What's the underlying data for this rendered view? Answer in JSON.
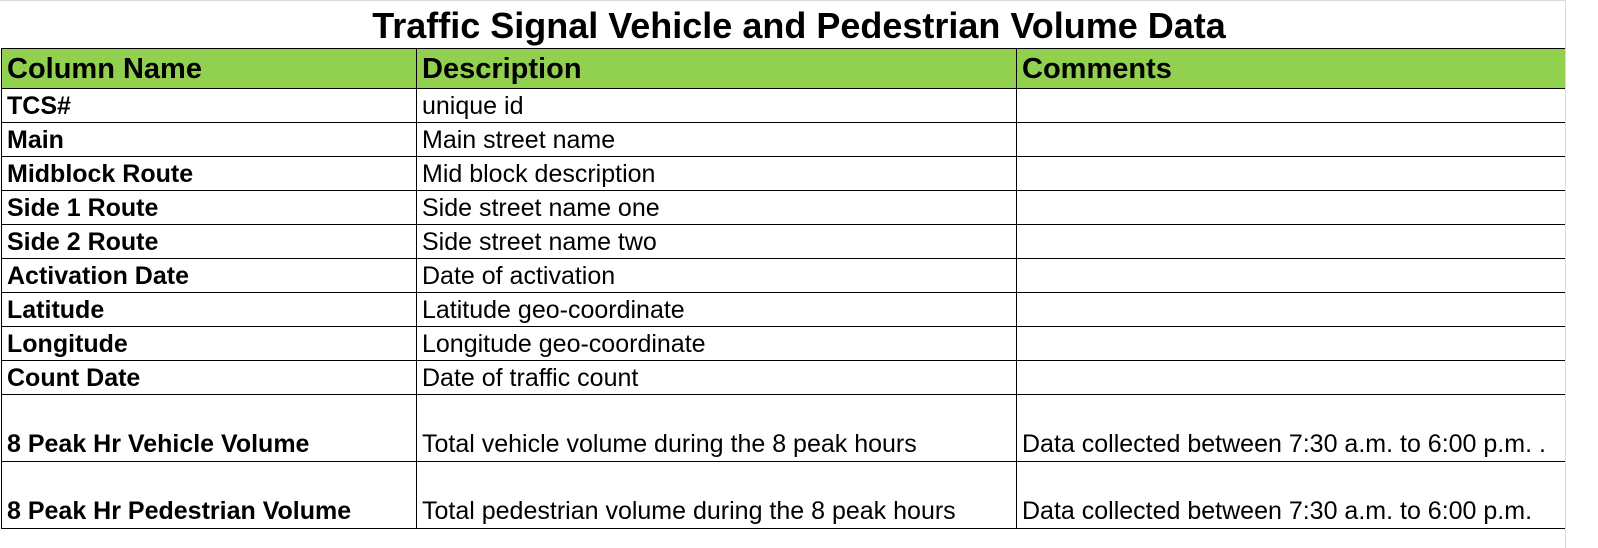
{
  "title": "Traffic Signal Vehicle and Pedestrian Volume Data",
  "headers": {
    "column_name": "Column Name",
    "description": "Description",
    "comments": "Comments"
  },
  "rows": [
    {
      "name": "TCS#",
      "description": "unique id",
      "comments": ""
    },
    {
      "name": "Main",
      "description": "Main street name",
      "comments": ""
    },
    {
      "name": "Midblock Route",
      "description": "Mid block description",
      "comments": ""
    },
    {
      "name": "Side 1 Route",
      "description": "Side street name one",
      "comments": ""
    },
    {
      "name": "Side 2 Route",
      "description": "Side street name two",
      "comments": ""
    },
    {
      "name": "Activation Date",
      "description": "Date of activation",
      "comments": ""
    },
    {
      "name": "Latitude",
      "description": "Latitude geo-coordinate",
      "comments": ""
    },
    {
      "name": "Longitude",
      "description": "Longitude geo-coordinate",
      "comments": ""
    },
    {
      "name": "Count Date",
      "description": "Date of traffic count",
      "comments": ""
    },
    {
      "name": "8 Peak Hr Vehicle Volume",
      "description": "Total vehicle volume during the 8 peak hours",
      "comments": "Data collected between 7:30 a.m. to 6:00 p.m. ."
    },
    {
      "name": "8 Peak Hr Pedestrian Volume",
      "description": "Total pedestrian volume during the 8 peak hours",
      "comments": "Data collected between 7:30 a.m. to 6:00 p.m."
    }
  ]
}
